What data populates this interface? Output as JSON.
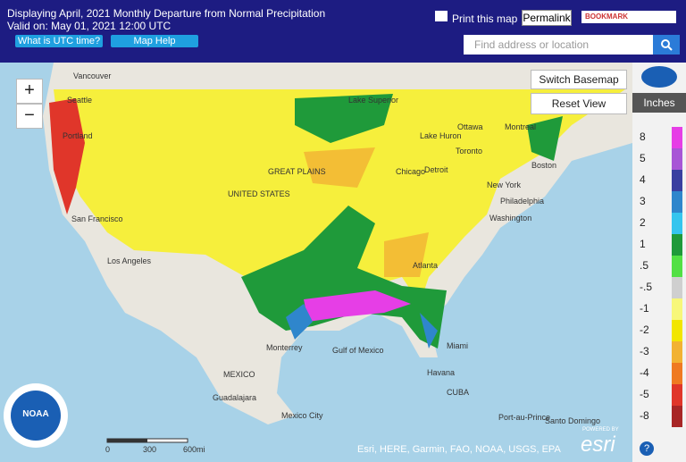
{
  "header": {
    "title": "Displaying April, 2021 Monthly Departure from Normal Precipitation",
    "valid": "Valid on: May 01, 2021 12:00 UTC",
    "buttons": [
      "What is UTC time?",
      "Map Help"
    ],
    "print": "Print this map",
    "permalink": "Permalink",
    "bookmark": "BOOKMARK",
    "search_placeholder": "Find address or location"
  },
  "controls": {
    "zoom_in": "+",
    "zoom_out": "−",
    "switch_basemap": "Switch Basemap",
    "reset_view": "Reset View"
  },
  "legend": {
    "title": "Inches",
    "items": [
      {
        "label": "8",
        "color": "#e63ee6"
      },
      {
        "label": "5",
        "color": "#a855d6"
      },
      {
        "label": "4",
        "color": "#3a3fa0"
      },
      {
        "label": "3",
        "color": "#2f86cc"
      },
      {
        "label": "2",
        "color": "#35c5ee"
      },
      {
        "label": "1",
        "color": "#1f9a3a"
      },
      {
        "label": ".5",
        "color": "#52e044"
      },
      {
        "label": "-.5",
        "color": "#cfcfcf"
      },
      {
        "label": "-1",
        "color": "#f7f77a"
      },
      {
        "label": "-2",
        "color": "#f2e600"
      },
      {
        "label": "-3",
        "color": "#f2b233"
      },
      {
        "label": "-4",
        "color": "#ef7a22"
      },
      {
        "label": "-5",
        "color": "#e0362a"
      },
      {
        "label": "-8",
        "color": "#a82626"
      }
    ]
  },
  "scale_bar": [
    "0",
    "300",
    "600mi"
  ],
  "attribution": "Esri, HERE, Garmin, FAO, NOAA, USGS, EPA",
  "esri": {
    "powered": "POWERED BY",
    "logo": "esri"
  },
  "noaa": "NOAA",
  "map_labels": [
    "Vancouver",
    "Seattle",
    "Portland",
    "San Francisco",
    "Los Angeles",
    "Ottawa",
    "Montreal",
    "Toronto",
    "Boston",
    "Chicago",
    "Detroit",
    "New York",
    "Philadelphia",
    "Washington",
    "Atlanta",
    "Lake Huron",
    "Lake Superior",
    "GREAT PLAINS",
    "UNITED STATES",
    "Monterrey",
    "Gulf of Mexico",
    "MEXICO",
    "Guadalajara",
    "Mexico City",
    "Miami",
    "Havana",
    "CUBA",
    "Port-au-Prince",
    "Santo Domingo"
  ]
}
